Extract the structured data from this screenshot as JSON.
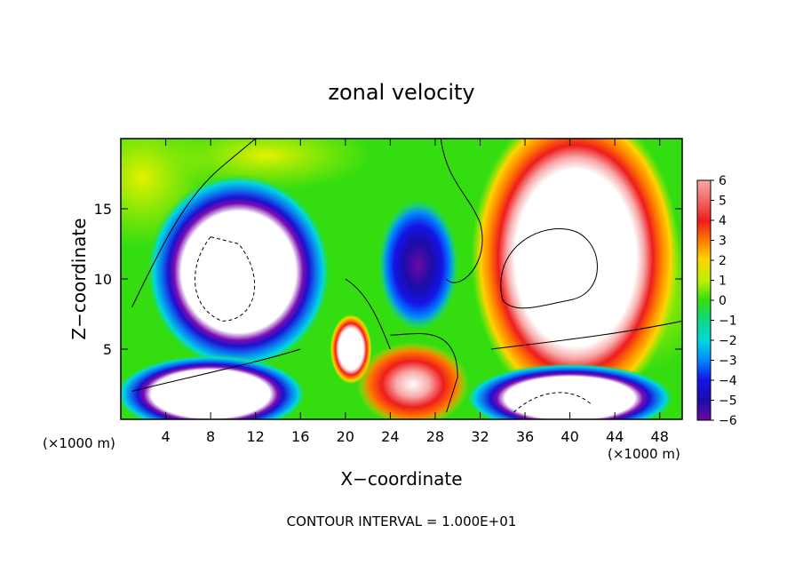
{
  "chart_data": {
    "type": "heatmap",
    "title": "zonal velocity",
    "xlabel": "X−coordinate",
    "ylabel": "Z−coordinate",
    "x_unit_left": "(×1000 m)",
    "x_unit_right": "(×1000 m)",
    "xlim": [
      0,
      50
    ],
    "ylim": [
      0,
      20
    ],
    "x_ticks": [
      4,
      8,
      12,
      16,
      20,
      24,
      28,
      32,
      36,
      40,
      44,
      48
    ],
    "y_ticks": [
      5,
      10,
      15
    ],
    "colorbar": {
      "labels": [
        "6",
        "5",
        "4",
        "3",
        "2",
        "1",
        "0",
        "−1",
        "−2",
        "−3",
        "−4",
        "−5",
        "−6"
      ],
      "range": [
        -6,
        6
      ],
      "colors": [
        "#f7a8a8",
        "#f46a6a",
        "#ee1c1c",
        "#ff7a00",
        "#ffd400",
        "#b8f000",
        "#33dd10",
        "#12d880",
        "#00d8e0",
        "#0088ff",
        "#1414e6",
        "#1c0ca8",
        "#6a0aa0"
      ]
    },
    "footnote": "CONTOUR INTERVAL = 1.000E+01",
    "features": [
      {
        "kind": "saturated-negative",
        "cx": 10.5,
        "cz": 10.5,
        "rx": 5.3,
        "rz": 4.5
      },
      {
        "kind": "saturated-positive",
        "cx": 40.5,
        "cz": 11.5,
        "rx": 6.0,
        "rz": 7.0
      },
      {
        "kind": "negative-core",
        "cx": 26.5,
        "cz": 11.0,
        "rx": 2.3,
        "rz": 3.0
      },
      {
        "kind": "saturated-positive",
        "cx": 20.5,
        "cz": 5.0,
        "rx": 1.2,
        "rz": 1.6
      },
      {
        "kind": "saturated-negative",
        "cx": 8.0,
        "cz": 1.8,
        "rx": 5.5,
        "rz": 1.8
      },
      {
        "kind": "saturated-negative",
        "cx": 40.0,
        "cz": 1.5,
        "rx": 6.0,
        "rz": 1.6
      }
    ]
  }
}
